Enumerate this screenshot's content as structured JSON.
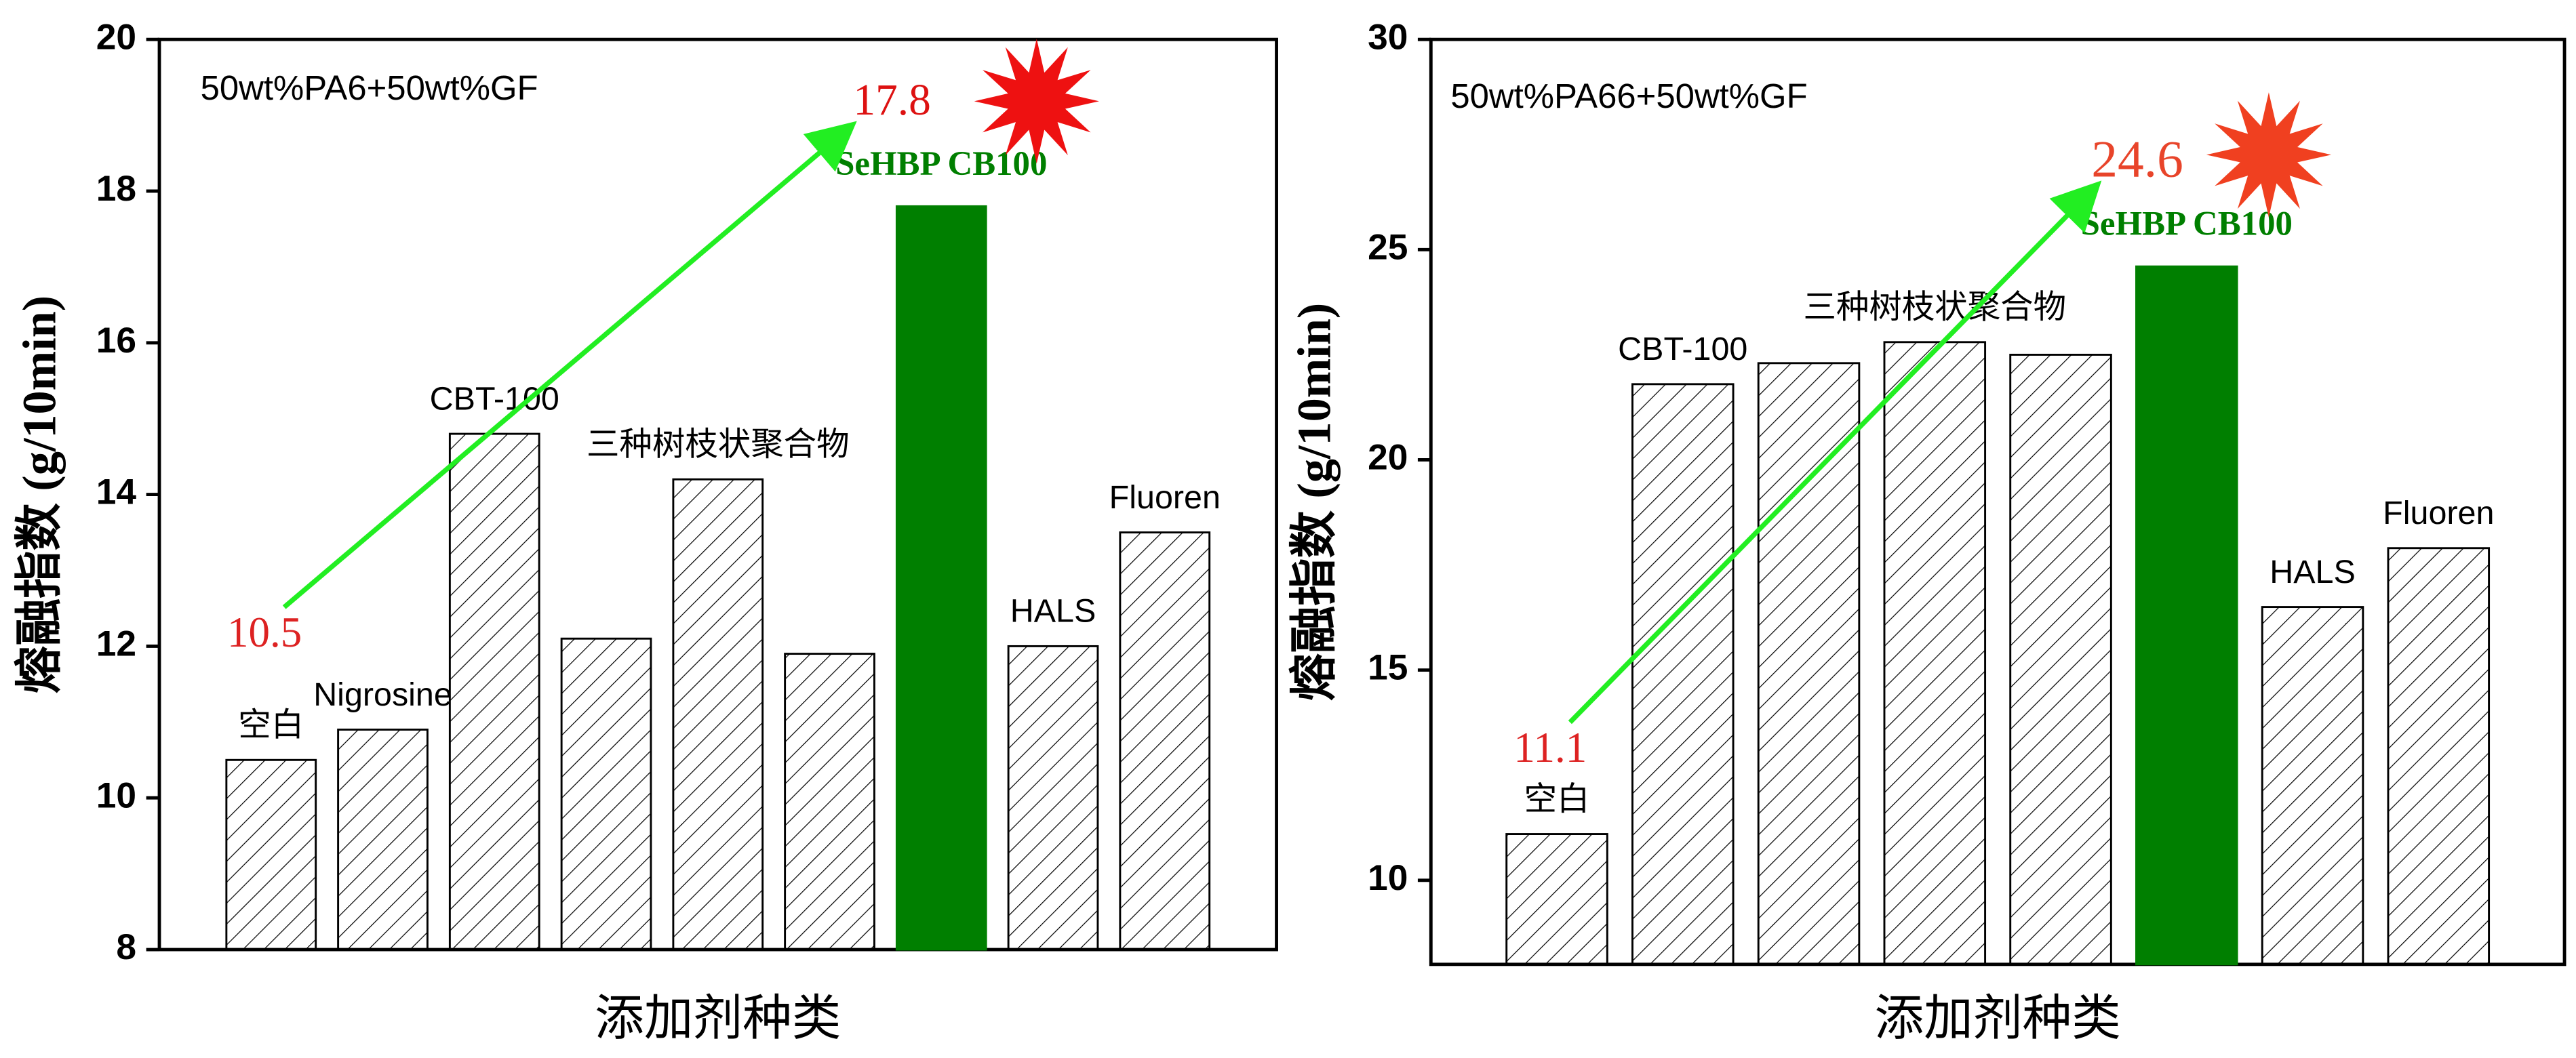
{
  "chart_data": [
    {
      "type": "bar",
      "annotation": "50wt%PA6+50wt%GF",
      "y_label": "熔融指数 (g/10min)",
      "x_label": "添加剂种类",
      "categories": [
        "空白",
        "Nigrosine",
        "CBT-100",
        null,
        "三种树枝状聚合物",
        null,
        "SeHBP CB100",
        "HALS",
        "Fluoren"
      ],
      "values": [
        10.5,
        10.9,
        14.8,
        12.1,
        14.2,
        11.9,
        17.8,
        12.0,
        13.5
      ],
      "colors": [
        "#ffffff",
        "#ffffff",
        "#ffffff",
        "#ffffff",
        "#ffffff",
        "#ffffff",
        "#007f00",
        "#ffffff",
        "#ffffff"
      ],
      "ylim": [
        8,
        20
      ],
      "yticks": [
        8,
        10,
        12,
        14,
        16,
        18,
        20
      ],
      "arrow": [
        0,
        6
      ]
    },
    {
      "type": "bar",
      "annotation": "50wt%PA66+50wt%GF",
      "y_label": "熔融指数 (g/10min)",
      "x_label": "添加剂种类",
      "categories": [
        "空白",
        "CBT-100",
        null,
        "三种树枝状聚合物",
        null,
        "SeHBP CB100",
        "HALS",
        "Fluoren"
      ],
      "values": [
        11.1,
        21.8,
        22.3,
        22.8,
        22.5,
        24.6,
        16.5,
        17.9
      ],
      "colors": [
        "#ffffff",
        "#ffffff",
        "#ffffff",
        "#ffffff",
        "#ffffff",
        "#007f00",
        "#ffffff",
        "#ffffff"
      ],
      "ylim": [
        8,
        30
      ],
      "yticks": [
        10,
        15,
        20,
        25,
        30
      ],
      "arrow": [
        0,
        5
      ]
    }
  ]
}
